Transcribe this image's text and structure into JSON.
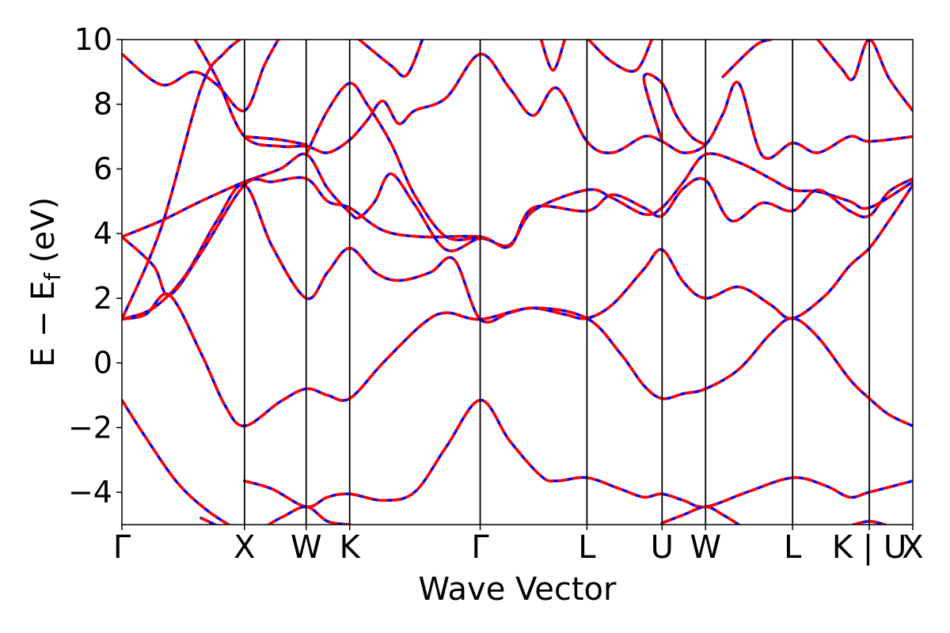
{
  "chart_data": {
    "type": "line",
    "title": "",
    "xlabel": "Wave Vector",
    "ylabel": "E − E",
    "ylabel_sub": "f",
    "ylabel_unit": " (eV)",
    "ylim": [
      -5,
      10
    ],
    "yticks": [
      -4,
      -2,
      0,
      2,
      4,
      6,
      8,
      10
    ],
    "ytick_labels": [
      "−4",
      "−2",
      "0",
      "2",
      "4",
      "6",
      "8",
      "10"
    ],
    "xlim": [
      0,
      1
    ],
    "grid": false,
    "legend": "none",
    "high_symmetry_points": [
      {
        "label": "Γ",
        "x": 0.0
      },
      {
        "label": "X",
        "x": 0.155
      },
      {
        "label": "W",
        "x": 0.233
      },
      {
        "label": "K",
        "x": 0.288
      },
      {
        "label": "Γ",
        "x": 0.453
      },
      {
        "label": "L",
        "x": 0.588
      },
      {
        "label": "U",
        "x": 0.683
      },
      {
        "label": "W",
        "x": 0.738
      },
      {
        "label": "L",
        "x": 0.848
      },
      {
        "label": "K | U",
        "x": 0.945
      },
      {
        "label": "X",
        "x": 1.0
      }
    ],
    "series_colors": {
      "spin_up": "#0000ff",
      "spin_down": "#ff0000"
    },
    "bands": [
      {
        "name": "",
        "points": [
          [
            0,
            -1.15
          ],
          [
            0.03,
            -2.3
          ],
          [
            0.07,
            -3.7
          ],
          [
            0.11,
            -4.6
          ],
          [
            0.155,
            -5.3
          ]
        ]
      },
      {
        "name": "",
        "points": [
          [
            0.155,
            -3.65
          ],
          [
            0.19,
            -3.9
          ],
          [
            0.233,
            -4.45
          ],
          [
            0.26,
            -4.15
          ],
          [
            0.288,
            -4.05
          ],
          [
            0.33,
            -4.25
          ],
          [
            0.37,
            -4.0
          ],
          [
            0.41,
            -2.6
          ],
          [
            0.453,
            -1.15
          ],
          [
            0.49,
            -2.4
          ],
          [
            0.53,
            -3.5
          ],
          [
            0.55,
            -3.65
          ],
          [
            0.588,
            -3.55
          ],
          [
            0.63,
            -3.9
          ],
          [
            0.66,
            -4.15
          ],
          [
            0.683,
            -4.05
          ],
          [
            0.71,
            -4.25
          ],
          [
            0.738,
            -4.45
          ],
          [
            0.79,
            -4.0
          ],
          [
            0.848,
            -3.55
          ],
          [
            0.89,
            -3.8
          ],
          [
            0.92,
            -4.15
          ],
          [
            0.945,
            -4.0
          ],
          [
            1.0,
            -3.65
          ]
        ]
      },
      {
        "name": "",
        "points": [
          [
            0.1,
            -4.8
          ],
          [
            0.155,
            -5.3
          ],
          [
            0.2,
            -4.8
          ],
          [
            0.233,
            -4.45
          ],
          [
            0.26,
            -4.9
          ],
          [
            0.288,
            -5.0
          ]
        ]
      },
      {
        "name": "",
        "points": [
          [
            0.683,
            -4.95
          ],
          [
            0.71,
            -4.7
          ],
          [
            0.738,
            -4.45
          ],
          [
            0.76,
            -4.7
          ],
          [
            0.78,
            -5.0
          ]
        ]
      },
      {
        "name": "",
        "points": [
          [
            0.925,
            -5.0
          ],
          [
            0.945,
            -4.9
          ],
          [
            0.965,
            -5.0
          ]
        ]
      },
      {
        "name": "",
        "points": [
          [
            0,
            1.35
          ],
          [
            0.04,
            1.7
          ],
          [
            0.08,
            2.7
          ],
          [
            0.12,
            4.4
          ],
          [
            0.155,
            5.5
          ],
          [
            0.19,
            3.6
          ],
          [
            0.233,
            2.0
          ],
          [
            0.26,
            2.8
          ],
          [
            0.288,
            3.55
          ],
          [
            0.32,
            2.8
          ],
          [
            0.35,
            2.55
          ],
          [
            0.39,
            2.8
          ],
          [
            0.42,
            3.2
          ],
          [
            0.453,
            1.35
          ],
          [
            0.49,
            1.55
          ],
          [
            0.52,
            1.7
          ],
          [
            0.56,
            1.5
          ],
          [
            0.588,
            1.38
          ],
          [
            0.62,
            1.8
          ],
          [
            0.66,
            2.9
          ],
          [
            0.683,
            3.5
          ],
          [
            0.71,
            2.5
          ],
          [
            0.738,
            2.0
          ],
          [
            0.78,
            2.35
          ],
          [
            0.82,
            1.8
          ],
          [
            0.848,
            1.38
          ],
          [
            0.89,
            2.1
          ],
          [
            0.92,
            3.0
          ],
          [
            0.945,
            3.55
          ],
          [
            0.97,
            4.4
          ],
          [
            1.0,
            5.5
          ]
        ]
      },
      {
        "name": "",
        "points": [
          [
            0,
            1.35
          ],
          [
            0.03,
            1.5
          ],
          [
            0.06,
            2.1
          ],
          [
            0.1,
            0.3
          ],
          [
            0.13,
            -1.3
          ],
          [
            0.155,
            -1.95
          ],
          [
            0.2,
            -1.2
          ],
          [
            0.233,
            -0.8
          ],
          [
            0.26,
            -1.0
          ],
          [
            0.288,
            -1.1
          ],
          [
            0.33,
            0.0
          ],
          [
            0.38,
            1.2
          ],
          [
            0.41,
            1.55
          ],
          [
            0.453,
            1.35
          ],
          [
            0.52,
            1.7
          ],
          [
            0.588,
            1.38
          ],
          [
            0.63,
            0.3
          ],
          [
            0.66,
            -0.7
          ],
          [
            0.683,
            -1.1
          ],
          [
            0.71,
            -0.95
          ],
          [
            0.738,
            -0.8
          ],
          [
            0.78,
            -0.2
          ],
          [
            0.82,
            0.9
          ],
          [
            0.848,
            1.38
          ],
          [
            0.88,
            0.8
          ],
          [
            0.92,
            -0.5
          ],
          [
            0.945,
            -1.1
          ],
          [
            0.97,
            -1.6
          ],
          [
            1.0,
            -1.95
          ]
        ]
      },
      {
        "name": "",
        "points": [
          [
            0,
            3.9
          ],
          [
            0.05,
            4.4
          ],
          [
            0.1,
            5.0
          ],
          [
            0.155,
            5.6
          ],
          [
            0.2,
            6.0
          ],
          [
            0.233,
            6.45
          ],
          [
            0.26,
            5.4
          ],
          [
            0.288,
            4.65
          ],
          [
            0.3,
            4.5
          ],
          [
            0.32,
            5.0
          ],
          [
            0.34,
            5.85
          ],
          [
            0.37,
            4.9
          ],
          [
            0.41,
            3.5
          ],
          [
            0.453,
            3.85
          ],
          [
            0.49,
            3.65
          ],
          [
            0.52,
            4.7
          ],
          [
            0.588,
            5.35
          ],
          [
            0.62,
            5.1
          ],
          [
            0.66,
            4.6
          ],
          [
            0.683,
            4.8
          ],
          [
            0.71,
            5.6
          ],
          [
            0.738,
            6.45
          ],
          [
            0.78,
            6.2
          ],
          [
            0.82,
            5.7
          ],
          [
            0.848,
            5.35
          ],
          [
            0.88,
            5.3
          ],
          [
            0.92,
            5.0
          ],
          [
            0.945,
            4.8
          ],
          [
            1.0,
            5.6
          ]
        ]
      },
      {
        "name": "",
        "points": [
          [
            0,
            3.9
          ],
          [
            0.04,
            3.0
          ],
          [
            0.06,
            2.1
          ],
          [
            0.1,
            3.4
          ],
          [
            0.155,
            5.5
          ],
          [
            0.19,
            5.6
          ],
          [
            0.233,
            5.7
          ],
          [
            0.26,
            5.0
          ],
          [
            0.288,
            4.8
          ],
          [
            0.33,
            4.1
          ],
          [
            0.38,
            3.9
          ],
          [
            0.453,
            3.9
          ],
          [
            0.49,
            3.6
          ],
          [
            0.52,
            4.8
          ],
          [
            0.588,
            4.7
          ],
          [
            0.62,
            5.2
          ],
          [
            0.66,
            4.8
          ],
          [
            0.683,
            4.55
          ],
          [
            0.71,
            5.4
          ],
          [
            0.738,
            5.65
          ],
          [
            0.77,
            4.4
          ],
          [
            0.81,
            4.95
          ],
          [
            0.848,
            4.7
          ],
          [
            0.88,
            5.35
          ],
          [
            0.92,
            4.7
          ],
          [
            0.945,
            4.55
          ],
          [
            0.97,
            5.3
          ],
          [
            1.0,
            5.7
          ]
        ]
      },
      {
        "name": "",
        "points": [
          [
            0,
            1.35
          ],
          [
            0.05,
            4.2
          ],
          [
            0.1,
            8.5
          ],
          [
            0.13,
            9.6
          ],
          [
            0.155,
            10.1
          ]
        ]
      },
      {
        "name": "",
        "points": [
          [
            0.09,
            10.1
          ],
          [
            0.12,
            8.8
          ],
          [
            0.155,
            7.0
          ],
          [
            0.2,
            6.7
          ],
          [
            0.233,
            6.7
          ],
          [
            0.26,
            6.5
          ],
          [
            0.288,
            6.9
          ],
          [
            0.31,
            7.5
          ],
          [
            0.33,
            8.1
          ],
          [
            0.35,
            7.4
          ],
          [
            0.37,
            7.8
          ],
          [
            0.41,
            8.2
          ],
          [
            0.453,
            9.55
          ],
          [
            0.49,
            8.5
          ],
          [
            0.52,
            7.65
          ],
          [
            0.55,
            8.5
          ],
          [
            0.588,
            6.85
          ],
          [
            0.62,
            6.5
          ],
          [
            0.66,
            7.0
          ],
          [
            0.683,
            6.85
          ],
          [
            0.71,
            6.5
          ],
          [
            0.738,
            6.75
          ],
          [
            0.76,
            7.7
          ],
          [
            0.78,
            8.65
          ],
          [
            0.81,
            6.4
          ],
          [
            0.848,
            6.8
          ],
          [
            0.88,
            6.5
          ],
          [
            0.92,
            7.0
          ],
          [
            0.945,
            6.85
          ],
          [
            1.0,
            7.0
          ]
        ]
      },
      {
        "name": "",
        "points": [
          [
            0,
            9.55
          ],
          [
            0.05,
            8.6
          ],
          [
            0.09,
            9.0
          ],
          [
            0.12,
            8.6
          ],
          [
            0.155,
            7.8
          ],
          [
            0.18,
            9.2
          ],
          [
            0.2,
            10.1
          ]
        ]
      },
      {
        "name": "",
        "points": [
          [
            0.233,
            6.45
          ],
          [
            0.26,
            7.8
          ],
          [
            0.288,
            8.65
          ],
          [
            0.31,
            8.0
          ],
          [
            0.34,
            6.8
          ],
          [
            0.37,
            5.2
          ],
          [
            0.41,
            3.9
          ],
          [
            0.453,
            3.9
          ]
        ]
      },
      {
        "name": "",
        "points": [
          [
            0.155,
            7.0
          ],
          [
            0.2,
            6.9
          ],
          [
            0.233,
            6.75
          ]
        ]
      },
      {
        "name": "",
        "points": [
          [
            0.3,
            10.0
          ],
          [
            0.34,
            9.2
          ],
          [
            0.36,
            8.9
          ],
          [
            0.38,
            10.0
          ]
        ]
      },
      {
        "name": "",
        "points": [
          [
            0.53,
            10.0
          ],
          [
            0.545,
            9.05
          ],
          [
            0.56,
            10.0
          ]
        ]
      },
      {
        "name": "",
        "points": [
          [
            0.59,
            10.0
          ],
          [
            0.62,
            9.3
          ],
          [
            0.65,
            9.05
          ],
          [
            0.67,
            10.0
          ]
        ]
      },
      {
        "name": "",
        "points": [
          [
            0.683,
            6.85
          ],
          [
            0.66,
            8.8
          ],
          [
            0.683,
            8.65
          ],
          [
            0.7,
            7.7
          ],
          [
            0.72,
            7.0
          ],
          [
            0.738,
            6.75
          ]
        ]
      },
      {
        "name": "",
        "points": [
          [
            0.76,
            8.85
          ],
          [
            0.8,
            9.8
          ],
          [
            0.82,
            10.0
          ]
        ]
      },
      {
        "name": "",
        "points": [
          [
            0.88,
            10.0
          ],
          [
            0.91,
            9.1
          ],
          [
            0.925,
            8.8
          ],
          [
            0.945,
            10.0
          ],
          [
            0.97,
            8.8
          ],
          [
            1.0,
            7.8
          ]
        ]
      }
    ]
  }
}
